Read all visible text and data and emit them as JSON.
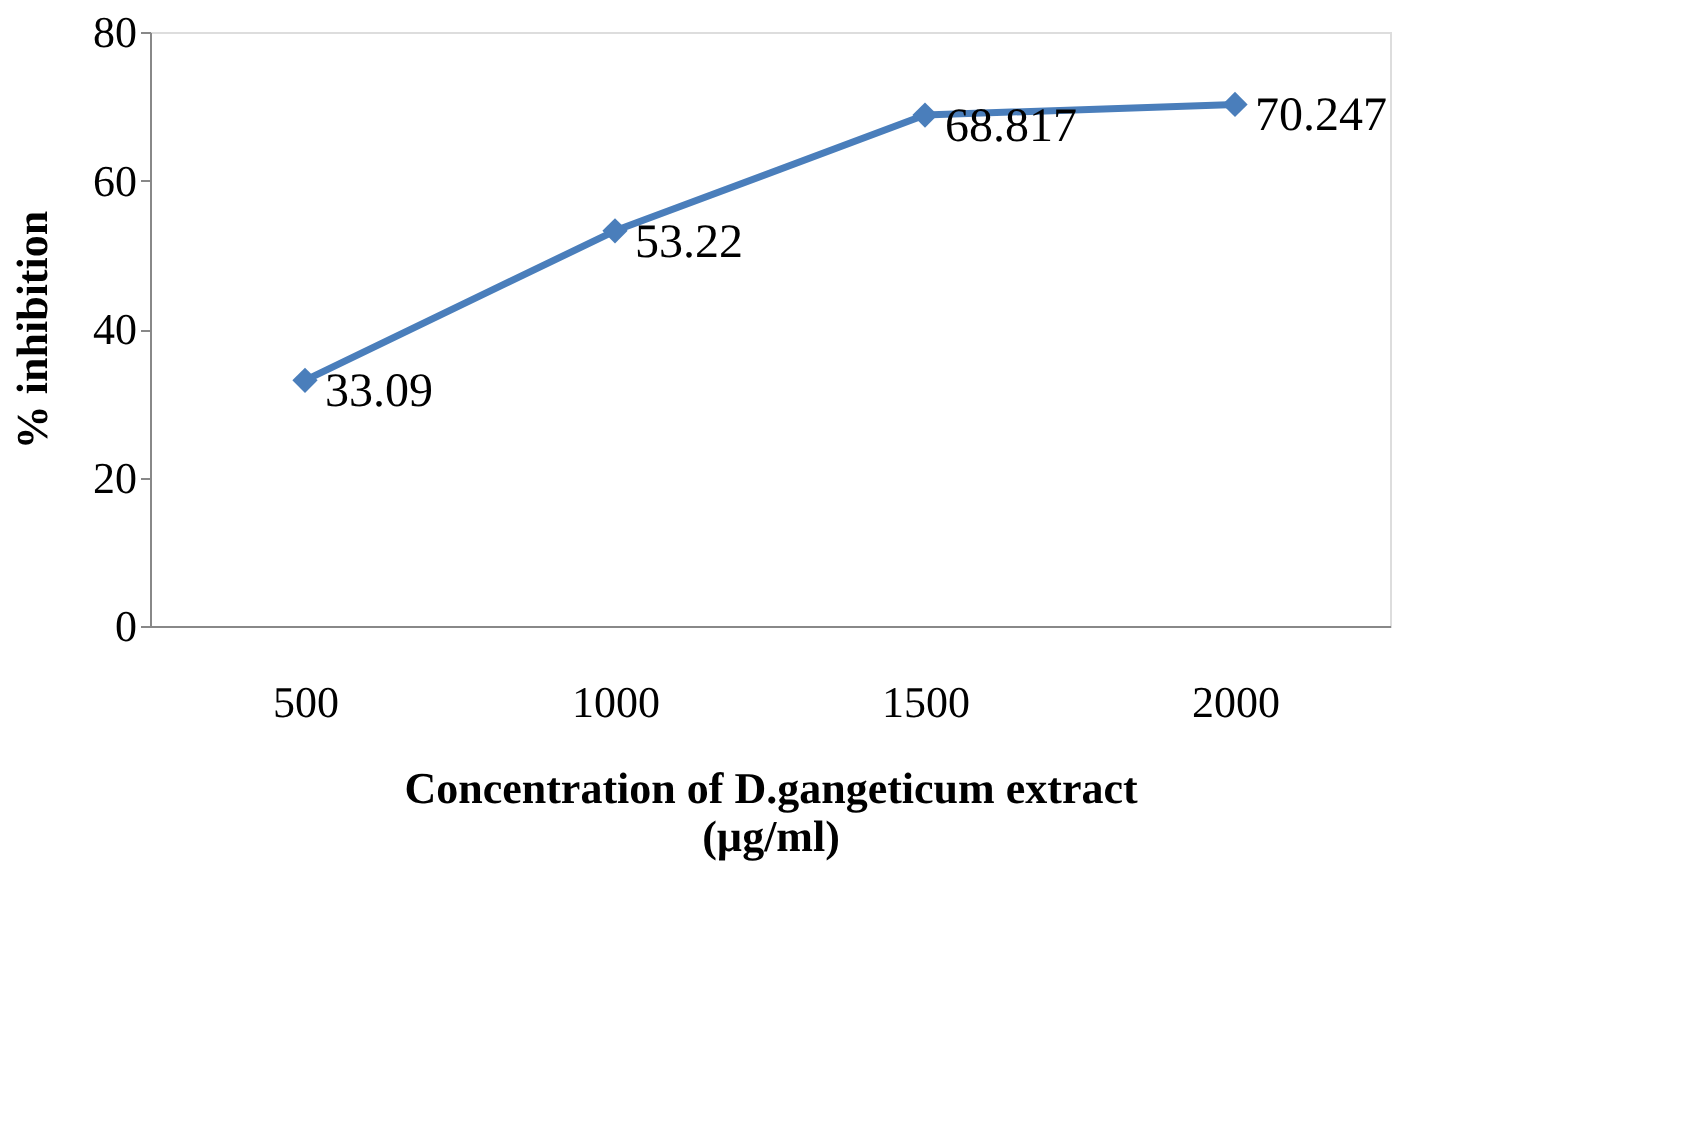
{
  "chart_data": {
    "type": "line",
    "xlabel": "Concentration of D.gangeticum extract (µg/ml)",
    "ylabel": "% inhibition",
    "categories": [
      "500",
      "1000",
      "1500",
      "2000"
    ],
    "series": [
      {
        "color": "#4a7ebb",
        "values": [
          33.09,
          53.22,
          68.817,
          70.247
        ]
      }
    ],
    "ylim": [
      0,
      80
    ],
    "yticks": [
      0,
      20,
      40,
      60,
      80
    ],
    "marker": "diamond",
    "line_style": "solid",
    "data_labels": true,
    "grid": false,
    "legend": false
  }
}
